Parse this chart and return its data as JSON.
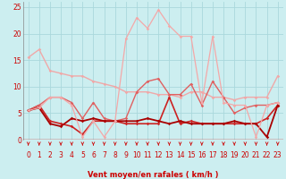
{
  "title": "",
  "xlabel": "Vent moyen/en rafales ( km/h )",
  "ylabel": "",
  "xlim": [
    -0.5,
    23.5
  ],
  "ylim": [
    0,
    26
  ],
  "yticks": [
    0,
    5,
    10,
    15,
    20,
    25
  ],
  "xticks": [
    0,
    1,
    2,
    3,
    4,
    5,
    6,
    7,
    8,
    9,
    10,
    11,
    12,
    13,
    14,
    15,
    16,
    17,
    18,
    19,
    20,
    21,
    22,
    23
  ],
  "bg_color": "#cceef0",
  "grid_color": "#aad8dc",
  "series": [
    {
      "y": [
        15.5,
        17.0,
        13.0,
        12.5,
        12.0,
        12.0,
        11.0,
        10.5,
        10.0,
        9.0,
        9.0,
        9.0,
        8.5,
        8.5,
        8.0,
        9.0,
        9.0,
        8.0,
        8.0,
        7.5,
        8.0,
        8.0,
        8.0,
        12.0
      ],
      "color": "#f0a8a8",
      "lw": 1.0,
      "marker": "D",
      "ms": 1.8
    },
    {
      "y": [
        5.5,
        6.5,
        3.5,
        3.0,
        2.5,
        1.0,
        3.5,
        3.5,
        3.5,
        3.0,
        3.0,
        3.0,
        3.0,
        8.0,
        3.0,
        3.5,
        3.0,
        3.0,
        3.0,
        3.0,
        3.0,
        3.0,
        4.0,
        6.5
      ],
      "color": "#cc2222",
      "lw": 1.2,
      "marker": "D",
      "ms": 1.8
    },
    {
      "y": [
        5.5,
        6.5,
        8.0,
        8.0,
        7.0,
        4.0,
        7.0,
        4.0,
        3.5,
        4.0,
        9.0,
        11.0,
        11.5,
        8.5,
        8.5,
        10.5,
        6.5,
        11.0,
        8.0,
        5.0,
        6.0,
        6.5,
        6.5,
        7.0
      ],
      "color": "#e06060",
      "lw": 1.0,
      "marker": "D",
      "ms": 1.8
    },
    {
      "y": [
        5.5,
        6.0,
        3.0,
        2.5,
        4.0,
        3.5,
        4.0,
        3.5,
        3.5,
        3.5,
        3.5,
        4.0,
        3.5,
        3.0,
        3.5,
        3.0,
        3.0,
        3.0,
        3.0,
        3.5,
        3.0,
        3.0,
        0.5,
        6.5
      ],
      "color": "#aa0000",
      "lw": 1.3,
      "marker": "D",
      "ms": 1.8
    },
    {
      "y": [
        5.5,
        6.0,
        8.0,
        8.0,
        6.5,
        0.5,
        3.5,
        0.5,
        3.5,
        19.0,
        23.0,
        21.0,
        24.5,
        21.5,
        19.5,
        19.5,
        7.0,
        19.5,
        7.0,
        6.5,
        6.5,
        0.5,
        6.5,
        7.0
      ],
      "color": "#f4a8a8",
      "lw": 0.9,
      "marker": "D",
      "ms": 1.8
    }
  ],
  "arrow_color": "#cc0000",
  "xlabel_color": "#cc0000",
  "xlabel_fontsize": 6.0,
  "tick_fontsize": 5.5,
  "tick_color": "#cc0000"
}
